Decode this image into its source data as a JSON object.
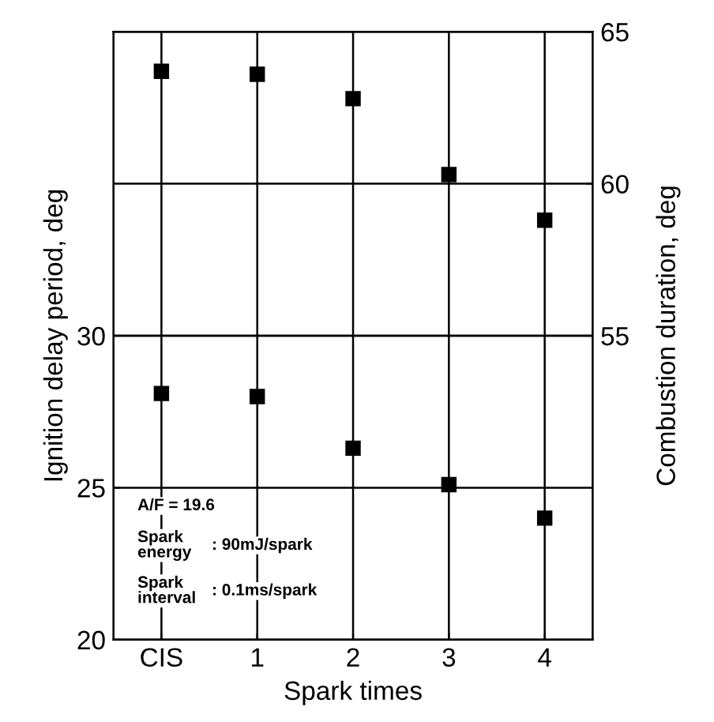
{
  "chart_data": {
    "type": "scatter",
    "xlabel": "Spark times",
    "ylabel": "Ignition delay period, deg",
    "y2label": "Combustion duration, deg",
    "categories": [
      "CIS",
      "1",
      "2",
      "3",
      "4"
    ],
    "series": [
      {
        "color": "#000000",
        "values": [
          28.1,
          28.0,
          26.3,
          25.1,
          24.0
        ]
      },
      {
        "color": "#000000",
        "axis": "y2",
        "values": [
          63.7,
          63.6,
          62.8,
          60.3,
          58.8
        ]
      }
    ],
    "grid": true,
    "marker": "square",
    "ylim": [
      20,
      40
    ],
    "yticks": [
      20,
      25,
      30
    ],
    "y2lim": [
      45,
      65
    ],
    "y2ticks": [
      55,
      60,
      65
    ],
    "annotations": [
      "A/F = 19.6",
      "Spark\nenergy",
      ": 90mJ/spark",
      "Spark\ninterval",
      ": 0.1ms/spark"
    ]
  }
}
